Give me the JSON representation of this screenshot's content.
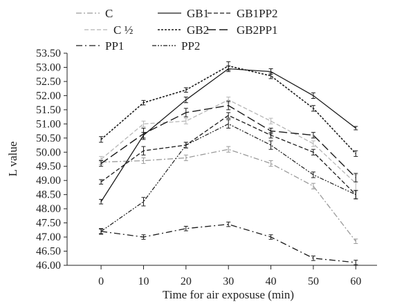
{
  "chart_data": {
    "type": "line",
    "xlabel": "Time for air exposuse (min)",
    "ylabel": "L value",
    "x": [
      0,
      10,
      20,
      30,
      40,
      50,
      60
    ],
    "xlim": [
      -8,
      65
    ],
    "ylim": [
      46.0,
      53.5
    ],
    "yticks": [
      "46.00",
      "46.50",
      "47.00",
      "47.50",
      "48.00",
      "48.50",
      "49.00",
      "49.50",
      "50.00",
      "50.50",
      "51.00",
      "51.50",
      "52.00",
      "52.50",
      "53.00",
      "53.50"
    ],
    "xticks": [
      "0",
      "10",
      "20",
      "30",
      "40",
      "50",
      "60"
    ],
    "grid": false,
    "legend_position": "top",
    "series": [
      {
        "name": "C",
        "values": [
          49.65,
          49.7,
          49.8,
          50.1,
          49.6,
          48.8,
          46.85
        ],
        "error": [
          0.08,
          0.1,
          0.1,
          0.1,
          0.1,
          0.1,
          0.08
        ],
        "color": "#9a9a9a",
        "dash": "8,3,2,3",
        "width": 1.3
      },
      {
        "name": "C ½",
        "values": [
          49.75,
          51.0,
          51.1,
          51.85,
          51.1,
          50.3,
          48.9
        ],
        "error": [
          0.1,
          0.1,
          0.1,
          0.1,
          0.1,
          0.1,
          0.3
        ],
        "color": "#b5b5b5",
        "dash": "6,3",
        "width": 1.3
      },
      {
        "name": "PP1",
        "values": [
          47.2,
          47.0,
          47.3,
          47.45,
          47.0,
          46.25,
          46.1
        ],
        "error": [
          0.08,
          0.08,
          0.08,
          0.08,
          0.08,
          0.08,
          0.08
        ],
        "color": "#1a1a1a",
        "dash": "9,4,2,4",
        "width": 1.3
      },
      {
        "name": "GB1",
        "values": [
          48.25,
          50.6,
          51.85,
          52.95,
          52.85,
          52.0,
          50.85
        ],
        "error": [
          0.08,
          0.1,
          0.1,
          0.1,
          0.1,
          0.1,
          0.06
        ],
        "color": "#1a1a1a",
        "dash": "",
        "width": 1.3
      },
      {
        "name": "GB2",
        "values": [
          50.45,
          51.75,
          52.2,
          53.05,
          52.7,
          51.55,
          49.95
        ],
        "error": [
          0.1,
          0.08,
          0.08,
          0.15,
          0.1,
          0.1,
          0.1
        ],
        "color": "#1a1a1a",
        "dash": "3,2",
        "width": 1.6
      },
      {
        "name": "PP2",
        "values": [
          47.2,
          48.25,
          50.25,
          51.0,
          50.25,
          49.2,
          48.5
        ],
        "error": [
          0.1,
          0.15,
          0.1,
          0.15,
          0.15,
          0.1,
          0.15
        ],
        "color": "#1a1a1a",
        "dash": "6,2,2,2,2,2",
        "width": 1.2
      },
      {
        "name": "GB1PP2",
        "values": [
          48.95,
          50.05,
          50.25,
          51.3,
          50.6,
          50.0,
          48.5
        ],
        "error": [
          0.08,
          0.15,
          0.1,
          0.1,
          0.1,
          0.1,
          0.15
        ],
        "color": "#1a1a1a",
        "dash": "6,3",
        "width": 1.3
      },
      {
        "name": "GB2PP1",
        "values": [
          49.6,
          50.65,
          51.4,
          51.65,
          50.75,
          50.6,
          49.1
        ],
        "error": [
          0.1,
          0.2,
          0.15,
          0.15,
          0.1,
          0.1,
          0.15
        ],
        "color": "#1a1a1a",
        "dash": "12,5",
        "width": 1.4
      }
    ]
  }
}
